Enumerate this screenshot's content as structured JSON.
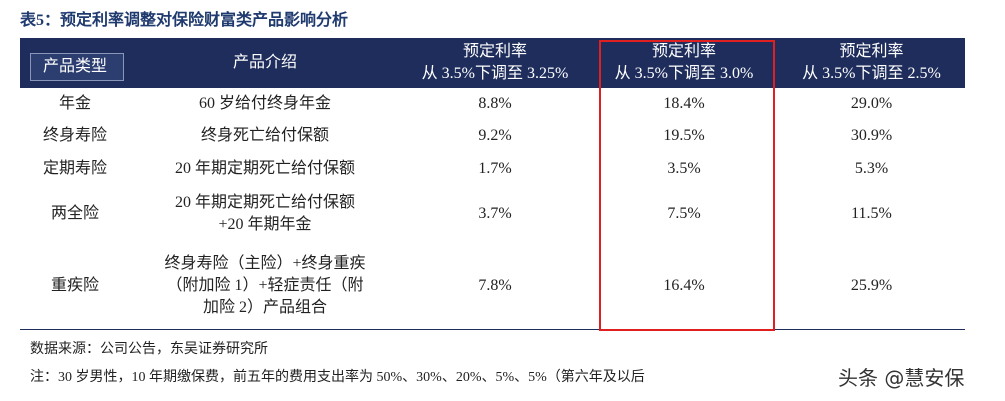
{
  "header": {
    "title": "表5：预定利率调整对保险财富类产品影响分析"
  },
  "table": {
    "columns": [
      [
        "产品类型"
      ],
      [
        "产品介绍"
      ],
      [
        "预定利率",
        "从 3.5%下调至 3.25%"
      ],
      [
        "预定利率",
        "从 3.5%下调至 3.0%"
      ],
      [
        "预定利率",
        "从 3.5%下调至 2.5%"
      ]
    ],
    "rows": [
      [
        [
          "年金"
        ],
        [
          "60 岁给付终身年金"
        ],
        [
          "8.8%"
        ],
        [
          "18.4%"
        ],
        [
          "29.0%"
        ]
      ],
      [
        [
          "终身寿险"
        ],
        [
          "终身死亡给付保额"
        ],
        [
          "9.2%"
        ],
        [
          "19.5%"
        ],
        [
          "30.9%"
        ]
      ],
      [
        [
          "定期寿险"
        ],
        [
          "20 年期定期死亡给付保额"
        ],
        [
          "1.7%"
        ],
        [
          "3.5%"
        ],
        [
          "5.3%"
        ]
      ],
      [
        [
          "两全险"
        ],
        [
          "20 年期定期死亡给付保额",
          "+20 年期年金"
        ],
        [
          "3.7%"
        ],
        [
          "7.5%"
        ],
        [
          "11.5%"
        ]
      ],
      [
        [
          "重疾险"
        ],
        [
          "终身寿险（主险）+终身重疾",
          "（附加险 1）+轻症责任（附",
          "加险 2）产品组合"
        ],
        [
          "7.8%"
        ],
        [
          "16.4%"
        ],
        [
          "25.9%"
        ]
      ]
    ]
  },
  "footer": {
    "source": "数据来源：公司公告，东吴证券研究所",
    "note": "注：30 岁男性，10 年期缴保费，前五年的费用支出率为 50%、30%、20%、5%、5%（第六年及以后",
    "watermark": "头条 @慧安保"
  }
}
